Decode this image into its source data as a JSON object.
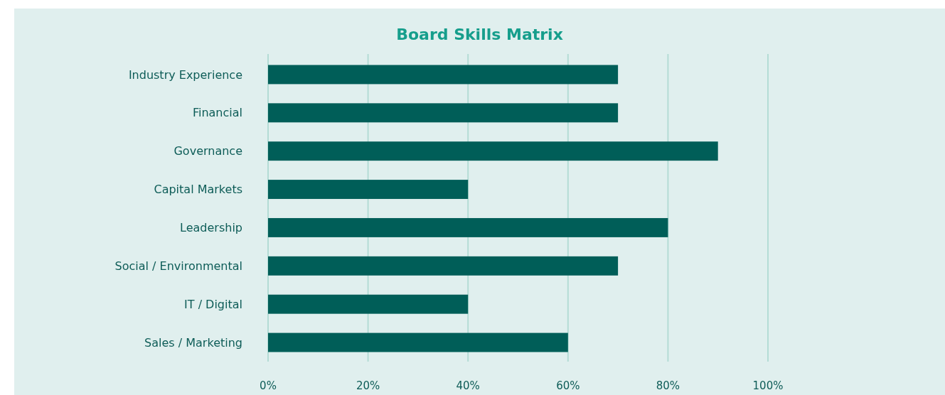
{
  "chart_data": {
    "type": "bar",
    "orientation": "horizontal",
    "title": "Board Skills Matrix",
    "categories": [
      "Industry Experience",
      "Financial",
      "Governance",
      "Capital Markets",
      "Leadership",
      "Social / Environmental",
      "IT / Digital",
      "Sales / Marketing"
    ],
    "values": [
      70,
      70,
      90,
      40,
      80,
      70,
      40,
      60
    ],
    "color": "#005e58",
    "xlim": [
      0,
      100
    ],
    "xticks": [
      {
        "value": 0,
        "label": "0%"
      },
      {
        "value": 20,
        "label": "20%"
      },
      {
        "value": 40,
        "label": "40%"
      },
      {
        "value": 60,
        "label": "60%"
      },
      {
        "value": 80,
        "label": "80%"
      },
      {
        "value": 100,
        "label": "100%"
      }
    ],
    "grid": "x"
  }
}
